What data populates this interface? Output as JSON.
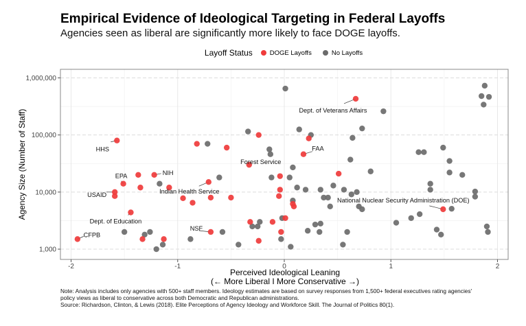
{
  "title": "Empirical Evidence of Ideological Targeting in Federal Layoffs",
  "subtitle": "Agencies seen as liberal are significantly more likely to face DOGE layoffs.",
  "note": [
    "Note: Analysis includes only agencies with 500+ staff members. Ideology estimates are based on survey responses from 1,500+ federal executives rating agencies'",
    "policy views as liberal to conservative across both Democratic and Republican administrations.",
    "Source: Richardson, Clinton, & Lewis (2018). Elite Perceptions of Agency Ideology and Workforce Skill. The Journal of Politics 80(1)."
  ],
  "chart_data": {
    "type": "scatter",
    "xlabel": "Perceived Ideological Leaning",
    "xlabel2": "(← More Liberal I More Conservative →)",
    "ylabel": "Agency Size (Number of Staff)",
    "xlim": [
      -2.1,
      2.1
    ],
    "ylim_log10": [
      2.82,
      6.15
    ],
    "y_scale": "log10",
    "x_ticks": [
      -2,
      -1,
      0,
      1,
      2
    ],
    "x_tick_labels": [
      "-2",
      "-1",
      "0",
      "1",
      "2"
    ],
    "y_ticks": [
      1000,
      10000,
      100000,
      1000000
    ],
    "y_tick_labels": [
      "1,000",
      "10,000",
      "100,000",
      "1,000,000"
    ],
    "grid": true,
    "legend": {
      "title": "Layoff Status",
      "placement": "top",
      "entries": [
        "DOGE Layoffs",
        "No Layoffs"
      ]
    },
    "colors": {
      "DOGE Layoffs": "#ef3b3b",
      "No Layoffs": "#6b6b6b"
    },
    "series": [
      {
        "name": "DOGE Layoffs",
        "points": [
          {
            "x": -1.57,
            "y": 80000,
            "label": "HHS"
          },
          {
            "x": -0.82,
            "y": 70000
          },
          {
            "x": -0.54,
            "y": 60000
          },
          {
            "x": -0.24,
            "y": 100000
          },
          {
            "x": -0.33,
            "y": 30000,
            "label": "Forest Service"
          },
          {
            "x": -1.51,
            "y": 14000,
            "label": "EPA"
          },
          {
            "x": -1.37,
            "y": 20000
          },
          {
            "x": -1.22,
            "y": 20000,
            "label": "NIH"
          },
          {
            "x": -1.35,
            "y": 12000
          },
          {
            "x": -1.08,
            "y": 12000
          },
          {
            "x": -0.71,
            "y": 15000,
            "label": "Indian Health Service"
          },
          {
            "x": -1.59,
            "y": 10000,
            "label": "USAID"
          },
          {
            "x": -1.59,
            "y": 8500
          },
          {
            "x": -0.95,
            "y": 7800
          },
          {
            "x": -0.86,
            "y": 6500
          },
          {
            "x": -0.69,
            "y": 8000
          },
          {
            "x": -0.5,
            "y": 8000
          },
          {
            "x": -0.04,
            "y": 19000
          },
          {
            "x": -0.04,
            "y": 11000
          },
          {
            "x": -0.05,
            "y": 8500
          },
          {
            "x": -1.44,
            "y": 4400,
            "label": "Dept. of Education"
          },
          {
            "x": -1.94,
            "y": 1500,
            "label": "CFPB"
          },
          {
            "x": -1.33,
            "y": 1500
          },
          {
            "x": -1.13,
            "y": 1500
          },
          {
            "x": -0.69,
            "y": 2000,
            "label": "NSF"
          },
          {
            "x": -0.32,
            "y": 3000
          },
          {
            "x": -0.11,
            "y": 3000
          },
          {
            "x": -0.24,
            "y": 1400
          },
          {
            "x": -0.03,
            "y": 2000
          },
          {
            "x": 0.01,
            "y": 3500
          },
          {
            "x": 0.67,
            "y": 430000,
            "label": "Dept. of Veterans Affairs"
          },
          {
            "x": 0.23,
            "y": 87000
          },
          {
            "x": 0.18,
            "y": 46000,
            "label": "FAA"
          },
          {
            "x": 0.51,
            "y": 21000
          },
          {
            "x": 0.08,
            "y": 6200
          },
          {
            "x": 0.09,
            "y": 5600
          },
          {
            "x": 1.49,
            "y": 5000,
            "label": "National Nuclear Security Administration (DOE)"
          }
        ]
      },
      {
        "name": "No Layoffs",
        "points": [
          {
            "x": 0.01,
            "y": 650000
          },
          {
            "x": -0.34,
            "y": 115000
          },
          {
            "x": -0.72,
            "y": 70000
          },
          {
            "x": -0.14,
            "y": 56000
          },
          {
            "x": -0.13,
            "y": 46000
          },
          {
            "x": -0.61,
            "y": 18000
          },
          {
            "x": -0.12,
            "y": 18000
          },
          {
            "x": -1.17,
            "y": 14000
          },
          {
            "x": -1.5,
            "y": 2000
          },
          {
            "x": -1.31,
            "y": 1800
          },
          {
            "x": -1.26,
            "y": 2000
          },
          {
            "x": -1.14,
            "y": 1200
          },
          {
            "x": -1.2,
            "y": 1000
          },
          {
            "x": -0.88,
            "y": 1500
          },
          {
            "x": -0.58,
            "y": 2000
          },
          {
            "x": -0.43,
            "y": 1200
          },
          {
            "x": -0.3,
            "y": 2500
          },
          {
            "x": -0.25,
            "y": 2500
          },
          {
            "x": -0.23,
            "y": 3000
          },
          {
            "x": -0.02,
            "y": 3500
          },
          {
            "x": -0.03,
            "y": 1500
          },
          {
            "x": 0.93,
            "y": 260000
          },
          {
            "x": 0.14,
            "y": 125000
          },
          {
            "x": 0.25,
            "y": 100000
          },
          {
            "x": 0.73,
            "y": 130000
          },
          {
            "x": 0.64,
            "y": 89000
          },
          {
            "x": 0.62,
            "y": 37000
          },
          {
            "x": 0.08,
            "y": 27000
          },
          {
            "x": 0.05,
            "y": 18000
          },
          {
            "x": 0.81,
            "y": 23000
          },
          {
            "x": 0.12,
            "y": 12000
          },
          {
            "x": 0.2,
            "y": 11000
          },
          {
            "x": 0.34,
            "y": 11000
          },
          {
            "x": 0.46,
            "y": 13000
          },
          {
            "x": 0.56,
            "y": 11000
          },
          {
            "x": 0.63,
            "y": 9100
          },
          {
            "x": 0.68,
            "y": 10000
          },
          {
            "x": 0.37,
            "y": 8000
          },
          {
            "x": 0.41,
            "y": 8000
          },
          {
            "x": 0.43,
            "y": 5600
          },
          {
            "x": 0.08,
            "y": 7100
          },
          {
            "x": 0.7,
            "y": 5600
          },
          {
            "x": 0.73,
            "y": 5000
          },
          {
            "x": 0.29,
            "y": 2700
          },
          {
            "x": 0.34,
            "y": 2800
          },
          {
            "x": 0.22,
            "y": 2100
          },
          {
            "x": 0.33,
            "y": 2000
          },
          {
            "x": 0.59,
            "y": 2000
          },
          {
            "x": 0.55,
            "y": 1200
          },
          {
            "x": 0.06,
            "y": 1100
          },
          {
            "x": 1.26,
            "y": 50000
          },
          {
            "x": 1.31,
            "y": 50000
          },
          {
            "x": 1.49,
            "y": 60000
          },
          {
            "x": 1.55,
            "y": 35000
          },
          {
            "x": 1.55,
            "y": 22000
          },
          {
            "x": 1.67,
            "y": 20000
          },
          {
            "x": 1.37,
            "y": 14000
          },
          {
            "x": 1.37,
            "y": 11000
          },
          {
            "x": 1.79,
            "y": 10200
          },
          {
            "x": 1.79,
            "y": 8300
          },
          {
            "x": 1.57,
            "y": 5100
          },
          {
            "x": 1.27,
            "y": 4100
          },
          {
            "x": 1.19,
            "y": 3500
          },
          {
            "x": 1.05,
            "y": 2900
          },
          {
            "x": 1.43,
            "y": 2200
          },
          {
            "x": 1.47,
            "y": 1800
          },
          {
            "x": 1.9,
            "y": 2500
          },
          {
            "x": 1.91,
            "y": 2000
          },
          {
            "x": 1.88,
            "y": 730000
          },
          {
            "x": 1.85,
            "y": 480000
          },
          {
            "x": 1.92,
            "y": 465000
          },
          {
            "x": 1.87,
            "y": 340000
          }
        ]
      }
    ]
  }
}
